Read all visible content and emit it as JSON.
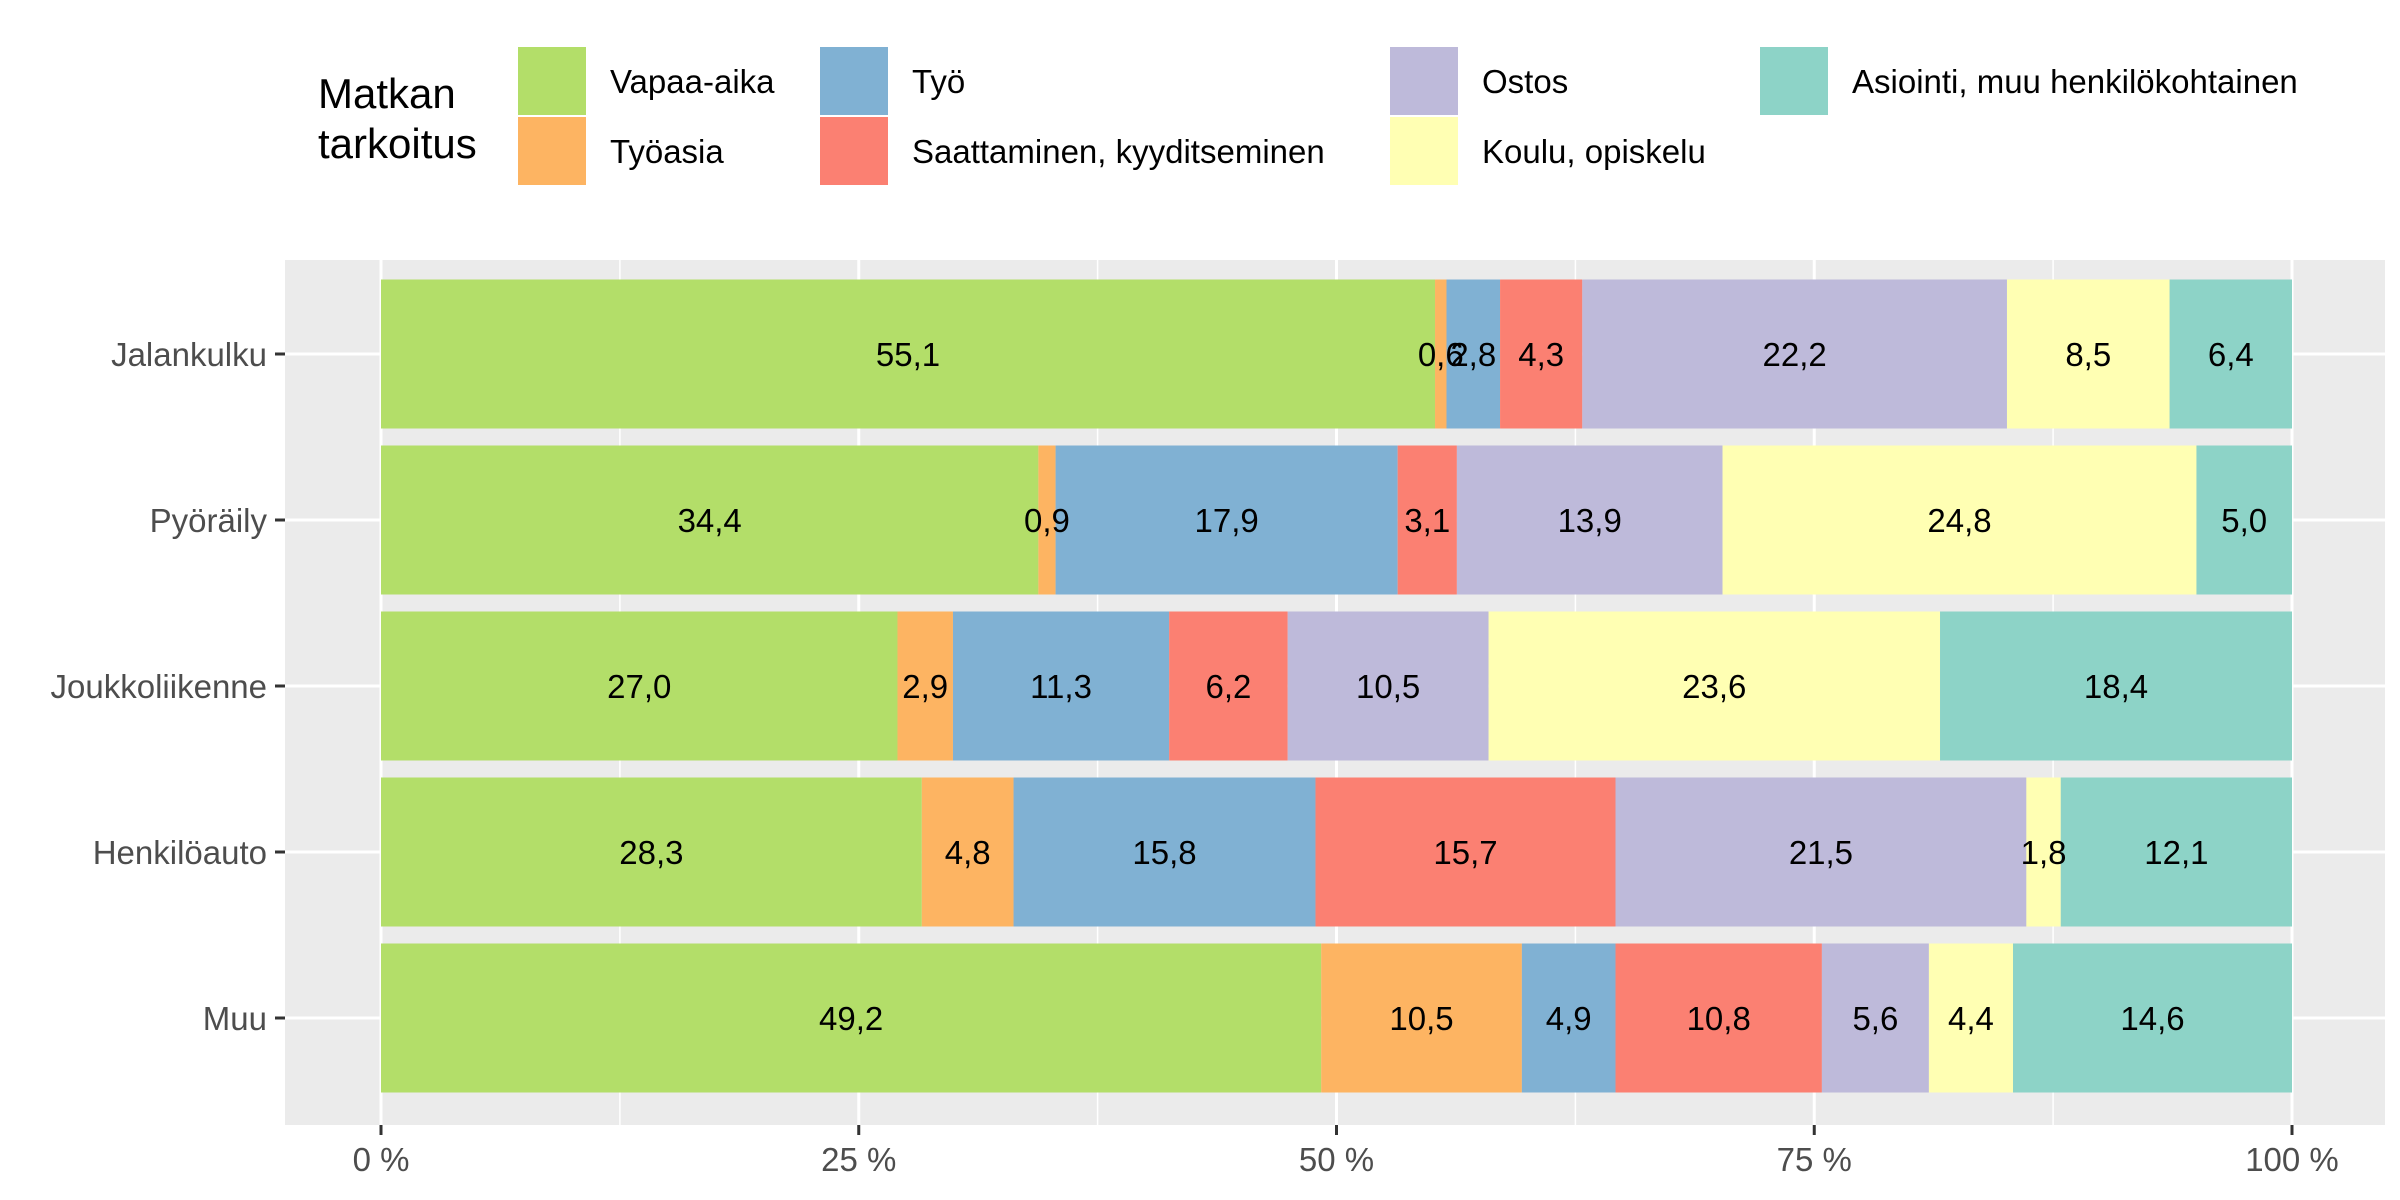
{
  "chart_data": {
    "type": "bar",
    "orientation": "horizontal",
    "stacked": "percent",
    "legend_title": [
      "Matkan",
      "tarkoitus"
    ],
    "legend_position": "top",
    "grid": true,
    "xlim": [
      0,
      100
    ],
    "x_ticks": [
      "0 %",
      "25 %",
      "50 %",
      "75 %",
      "100 %"
    ],
    "categories": [
      "Jalankulku",
      "Pyöräily",
      "Joukkoliikenne",
      "Henkilöauto",
      "Muu"
    ],
    "series": [
      {
        "name": "Vapaa-aika",
        "color": "#b3de69",
        "values": [
          55.1,
          34.4,
          27.0,
          28.3,
          49.2
        ],
        "labels": [
          "55,1",
          "34,4",
          "27,0",
          "28,3",
          "49,2"
        ]
      },
      {
        "name": "Työasia",
        "color": "#fdb462",
        "values": [
          0.6,
          0.9,
          2.9,
          4.8,
          10.5
        ],
        "labels": [
          "0,6",
          "0,9",
          "2,9",
          "4,8",
          "10,5"
        ]
      },
      {
        "name": "Työ",
        "color": "#80b1d3",
        "values": [
          2.8,
          17.9,
          11.3,
          15.8,
          4.9
        ],
        "labels": [
          "2,8",
          "17,9",
          "11,3",
          "15,8",
          "4,9"
        ]
      },
      {
        "name": "Saattaminen, kyyditseminen",
        "color": "#fb8072",
        "values": [
          4.3,
          3.1,
          6.2,
          15.7,
          10.8
        ],
        "labels": [
          "4,3",
          "3,1",
          "6,2",
          "15,7",
          "10,8"
        ]
      },
      {
        "name": "Ostos",
        "color": "#bebada",
        "values": [
          22.2,
          13.9,
          10.5,
          21.5,
          5.6
        ],
        "labels": [
          "22,2",
          "13,9",
          "10,5",
          "21,5",
          "5,6"
        ]
      },
      {
        "name": "Koulu, opiskelu",
        "color": "#ffffb3",
        "values": [
          8.5,
          24.8,
          23.6,
          1.8,
          4.4
        ],
        "labels": [
          "8,5",
          "24,8",
          "23,6",
          "1,8",
          "4,4"
        ]
      },
      {
        "name": "Asiointi, muu henkilökohtainen",
        "color": "#8dd3c7",
        "values": [
          6.4,
          5.0,
          18.4,
          12.1,
          14.6
        ],
        "labels": [
          "6,4",
          "5,0",
          "18,4",
          "12,1",
          "14,6"
        ]
      }
    ],
    "panel_color": "#ebebeb",
    "grid_color": "#ffffff"
  }
}
